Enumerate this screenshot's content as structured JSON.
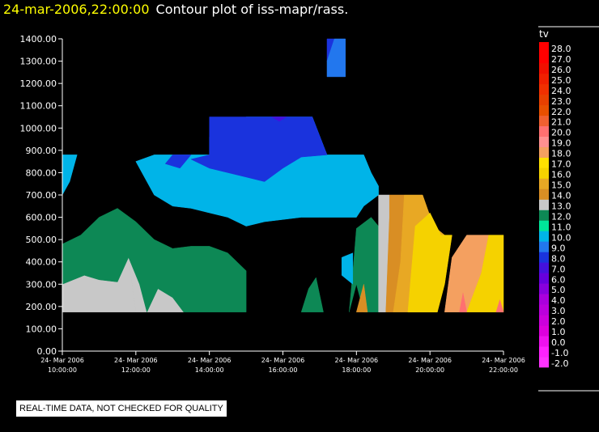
{
  "header": {
    "timestamp": "24-mar-2006,22:00:00",
    "title": "Contour plot of iss-mapr/rass."
  },
  "notice": "REAL-TIME DATA, NOT CHECKED FOR QUALITY",
  "chart_data": {
    "type": "heatmap",
    "title": "Contour plot of iss-mapr/rass.",
    "variable": "tv",
    "x_ticks": [
      {
        "hour": 10,
        "date": "24- Mar 2006",
        "time": "10:00:00"
      },
      {
        "hour": 12,
        "date": "24- Mar 2006",
        "time": "12:00:00"
      },
      {
        "hour": 14,
        "date": "24- Mar 2006",
        "time": "14:00:00"
      },
      {
        "hour": 16,
        "date": "24- Mar 2006",
        "time": "16:00:00"
      },
      {
        "hour": 18,
        "date": "24- Mar 2006",
        "time": "18:00:00"
      },
      {
        "hour": 20,
        "date": "24- Mar 2006",
        "time": "20:00:00"
      },
      {
        "hour": 22,
        "date": "24- Mar 2006",
        "time": "22:00:00"
      }
    ],
    "y_ticks": [
      0,
      100,
      200,
      300,
      400,
      500,
      600,
      700,
      800,
      900,
      1000,
      1100,
      1200,
      1300,
      1400
    ],
    "y_tick_labels": [
      "0.00",
      "100.00",
      "200.00",
      "300.00",
      "400.00",
      "500.00",
      "600.00",
      "700.00",
      "800.00",
      "900.00",
      "1000.00",
      "1100.00",
      "1200.00",
      "1300.00",
      "1400.00"
    ],
    "xlim": [
      10.0,
      22.0
    ],
    "ylim": [
      0,
      1400
    ],
    "legend_placement": "right",
    "colorbar": [
      {
        "label": "-2.0",
        "color": "#ff33ff"
      },
      {
        "label": "-1.0",
        "color": "#ff22ff"
      },
      {
        "label": "0.0",
        "color": "#ee11ee"
      },
      {
        "label": "1.0",
        "color": "#dd00dd"
      },
      {
        "label": "2.0",
        "color": "#cc00dd"
      },
      {
        "label": "3.0",
        "color": "#bb00dd"
      },
      {
        "label": "4.0",
        "color": "#aa00dd"
      },
      {
        "label": "5.0",
        "color": "#8800dd"
      },
      {
        "label": "6.0",
        "color": "#6600dd"
      },
      {
        "label": "7.0",
        "color": "#4411dd"
      },
      {
        "label": "8.0",
        "color": "#1a33dd"
      },
      {
        "label": "9.0",
        "color": "#2277ee"
      },
      {
        "label": "10.0",
        "color": "#00b4e8"
      },
      {
        "label": "11.0",
        "color": "#00e59a"
      },
      {
        "label": "12.0",
        "color": "#0d8855"
      },
      {
        "label": "13.0",
        "color": "#c8c8c8"
      },
      {
        "label": "14.0",
        "color": "#d98e24"
      },
      {
        "label": "15.0",
        "color": "#e8a824"
      },
      {
        "label": "16.0",
        "color": "#f5d200"
      },
      {
        "label": "17.0",
        "color": "#ffe000"
      },
      {
        "label": "18.0",
        "color": "#f4a060"
      },
      {
        "label": "19.0",
        "color": "#ff9090"
      },
      {
        "label": "20.0",
        "color": "#ff7070"
      },
      {
        "label": "21.0",
        "color": "#f06030"
      },
      {
        "label": "22.0",
        "color": "#e85000"
      },
      {
        "label": "23.0",
        "color": "#e84000"
      },
      {
        "label": "24.0",
        "color": "#f03000"
      },
      {
        "label": "25.0",
        "color": "#f02000"
      },
      {
        "label": "26.0",
        "color": "#f01000"
      },
      {
        "label": "27.0",
        "color": "#ff0000"
      },
      {
        "label": "28.0",
        "color": "#ff0000"
      }
    ],
    "regions": [
      {
        "value": "13.0",
        "points": [
          [
            10.0,
            175
          ],
          [
            10.0,
            300
          ],
          [
            10.6,
            340
          ],
          [
            11.0,
            320
          ],
          [
            11.5,
            310
          ],
          [
            11.8,
            420
          ],
          [
            12.0,
            175
          ]
        ]
      },
      {
        "value": "13.0",
        "points": [
          [
            11.8,
            420
          ],
          [
            12.1,
            300
          ],
          [
            12.3,
            175
          ],
          [
            12.6,
            280
          ],
          [
            13.0,
            240
          ],
          [
            13.3,
            175
          ],
          [
            12.0,
            175
          ]
        ]
      },
      {
        "value": "12.0",
        "points": [
          [
            10.0,
            300
          ],
          [
            10.0,
            480
          ],
          [
            10.5,
            520
          ],
          [
            11.0,
            600
          ],
          [
            11.5,
            640
          ],
          [
            12.0,
            580
          ],
          [
            12.5,
            500
          ],
          [
            13.0,
            460
          ],
          [
            13.5,
            470
          ],
          [
            14.0,
            470
          ],
          [
            14.5,
            440
          ],
          [
            15.0,
            360
          ],
          [
            15.0,
            175
          ],
          [
            13.3,
            175
          ],
          [
            13.0,
            240
          ],
          [
            12.6,
            280
          ],
          [
            12.3,
            175
          ],
          [
            12.1,
            300
          ],
          [
            11.8,
            420
          ],
          [
            11.5,
            310
          ],
          [
            11.0,
            320
          ],
          [
            10.6,
            340
          ]
        ]
      },
      {
        "value": "12.0",
        "points": [
          [
            16.5,
            175
          ],
          [
            16.7,
            280
          ],
          [
            16.9,
            330
          ],
          [
            17.1,
            175
          ]
        ]
      },
      {
        "value": "12.0",
        "points": [
          [
            17.8,
            175
          ],
          [
            17.9,
            350
          ],
          [
            18.0,
            550
          ],
          [
            18.4,
            600
          ],
          [
            18.6,
            560
          ],
          [
            18.6,
            175
          ],
          [
            18.2,
            175
          ],
          [
            18.0,
            300
          ]
        ]
      },
      {
        "value": "10.0",
        "points": [
          [
            13.0,
            880
          ],
          [
            14.0,
            880
          ],
          [
            14.0,
            960
          ],
          [
            15.0,
            1050
          ],
          [
            16.0,
            1050
          ],
          [
            16.8,
            1050
          ],
          [
            17.2,
            880
          ],
          [
            18.2,
            880
          ],
          [
            18.4,
            800
          ],
          [
            18.6,
            740
          ],
          [
            18.6,
            700
          ],
          [
            18.2,
            650
          ],
          [
            18.0,
            600
          ],
          [
            17.0,
            600
          ],
          [
            16.5,
            600
          ],
          [
            15.5,
            580
          ],
          [
            15.0,
            560
          ],
          [
            14.5,
            600
          ],
          [
            14.0,
            620
          ],
          [
            13.5,
            640
          ],
          [
            13.0,
            650
          ],
          [
            12.5,
            700
          ],
          [
            12.0,
            850
          ],
          [
            12.5,
            880
          ]
        ]
      },
      {
        "value": "10.0",
        "points": [
          [
            10.0,
            700
          ],
          [
            10.2,
            760
          ],
          [
            10.4,
            880
          ],
          [
            10.0,
            880
          ]
        ]
      },
      {
        "value": "10.0",
        "points": [
          [
            17.6,
            420
          ],
          [
            17.9,
            440
          ],
          [
            17.9,
            300
          ],
          [
            17.6,
            340
          ]
        ]
      },
      {
        "value": "8.0",
        "points": [
          [
            14.0,
            880
          ],
          [
            14.0,
            1050
          ],
          [
            15.0,
            1050
          ],
          [
            16.0,
            1050
          ],
          [
            16.8,
            1050
          ],
          [
            17.2,
            880
          ],
          [
            16.5,
            870
          ],
          [
            16.0,
            820
          ],
          [
            15.5,
            760
          ],
          [
            15.0,
            780
          ],
          [
            14.5,
            800
          ],
          [
            14.0,
            820
          ],
          [
            13.5,
            860
          ]
        ]
      },
      {
        "value": "8.0",
        "points": [
          [
            13.0,
            880
          ],
          [
            13.5,
            880
          ],
          [
            13.2,
            820
          ],
          [
            12.8,
            840
          ]
        ]
      },
      {
        "value": "8.0",
        "points": [
          [
            17.2,
            1400
          ],
          [
            17.2,
            1300
          ],
          [
            17.4,
            1400
          ]
        ]
      },
      {
        "value": "9.0",
        "points": [
          [
            17.2,
            1230
          ],
          [
            17.2,
            1300
          ],
          [
            17.4,
            1400
          ],
          [
            17.7,
            1400
          ],
          [
            17.7,
            1230
          ]
        ]
      },
      {
        "value": "7.0",
        "points": [
          [
            15.7,
            1050
          ],
          [
            15.9,
            1030
          ],
          [
            16.1,
            1050
          ]
        ]
      },
      {
        "value": "13.0",
        "points": [
          [
            18.6,
            175
          ],
          [
            18.6,
            700
          ],
          [
            18.9,
            700
          ],
          [
            18.9,
            600
          ],
          [
            18.8,
            175
          ]
        ]
      },
      {
        "value": "14.0",
        "points": [
          [
            18.8,
            175
          ],
          [
            18.9,
            600
          ],
          [
            18.9,
            700
          ],
          [
            19.3,
            700
          ],
          [
            19.2,
            400
          ],
          [
            19.0,
            175
          ]
        ]
      },
      {
        "value": "14.0",
        "points": [
          [
            18.0,
            175
          ],
          [
            18.2,
            300
          ],
          [
            18.3,
            175
          ]
        ]
      },
      {
        "value": "15.0",
        "points": [
          [
            19.0,
            175
          ],
          [
            19.2,
            400
          ],
          [
            19.3,
            700
          ],
          [
            19.8,
            700
          ],
          [
            20.1,
            560
          ],
          [
            20.4,
            520
          ],
          [
            20.2,
            175
          ]
        ]
      },
      {
        "value": "16.0",
        "points": [
          [
            19.4,
            175
          ],
          [
            19.6,
            560
          ],
          [
            20.0,
            620
          ],
          [
            20.3,
            520
          ],
          [
            20.6,
            520
          ],
          [
            20.4,
            300
          ],
          [
            20.2,
            175
          ]
        ]
      },
      {
        "value": "18.0",
        "points": [
          [
            20.4,
            175
          ],
          [
            20.6,
            420
          ],
          [
            21.0,
            520
          ],
          [
            21.6,
            520
          ],
          [
            21.4,
            350
          ],
          [
            21.0,
            175
          ]
        ]
      },
      {
        "value": "16.0",
        "points": [
          [
            21.0,
            175
          ],
          [
            21.4,
            350
          ],
          [
            21.6,
            520
          ],
          [
            22.0,
            520
          ],
          [
            22.0,
            175
          ]
        ]
      },
      {
        "value": "20.0",
        "points": [
          [
            20.8,
            175
          ],
          [
            20.9,
            260
          ],
          [
            21.0,
            175
          ]
        ]
      },
      {
        "value": "20.0",
        "points": [
          [
            21.8,
            175
          ],
          [
            21.9,
            230
          ],
          [
            22.0,
            175
          ]
        ]
      }
    ]
  }
}
